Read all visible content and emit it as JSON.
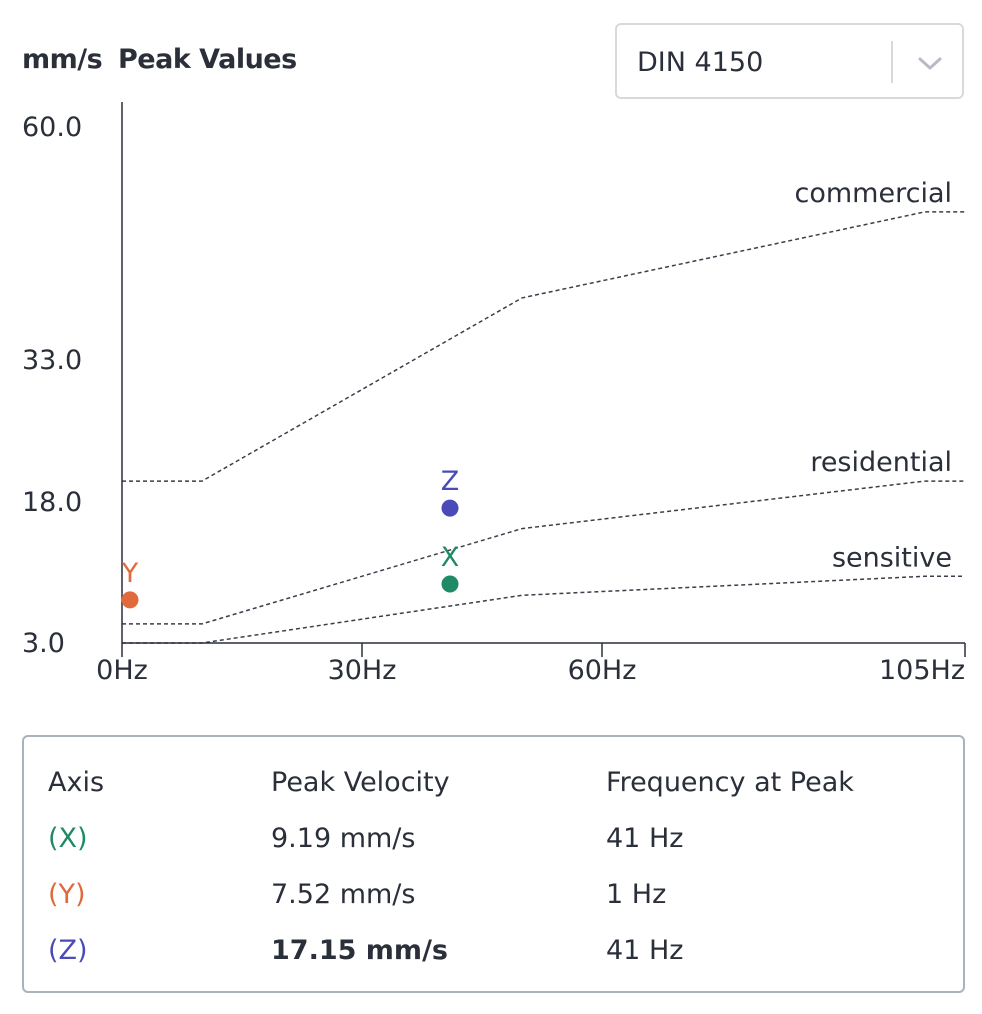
{
  "header": {
    "unit": "mm/s",
    "title": "Peak Values"
  },
  "standard_select": {
    "value": "DIN 4150",
    "icon": "chevron-down-icon"
  },
  "colors": {
    "x": "#1e8a66",
    "y": "#e06a3c",
    "z": "#4a4bb8",
    "axis": "#2a2f3a",
    "threshold": "#3a3f4a"
  },
  "chart_data": {
    "type": "scatter",
    "yticks": [
      "60.0",
      "33.0",
      "18.0",
      "3.0"
    ],
    "xticks": [
      "0Hz",
      "30Hz",
      "60Hz",
      "105Hz"
    ],
    "points": [
      {
        "label": "Y",
        "x": 1,
        "y": 7.52
      },
      {
        "label": "X",
        "x": 41,
        "y": 9.19
      },
      {
        "label": "Z",
        "x": 41,
        "y": 17.15
      }
    ],
    "thresholds": [
      {
        "name": "commercial",
        "points": [
          [
            0,
            20
          ],
          [
            10,
            20
          ],
          [
            50,
            40
          ],
          [
            100,
            50
          ],
          [
            105,
            50
          ]
        ]
      },
      {
        "name": "residential",
        "points": [
          [
            0,
            5
          ],
          [
            10,
            5
          ],
          [
            50,
            15
          ],
          [
            100,
            20
          ],
          [
            105,
            20
          ]
        ]
      },
      {
        "name": "sensitive",
        "points": [
          [
            0,
            3
          ],
          [
            10,
            3
          ],
          [
            50,
            8
          ],
          [
            100,
            10
          ],
          [
            105,
            10
          ]
        ]
      }
    ]
  },
  "table": {
    "headers": [
      "Axis",
      "Peak Velocity",
      "Frequency at Peak"
    ],
    "rows": [
      {
        "axis": "(X)",
        "velocity": "9.19 mm/s",
        "frequency": "41 Hz"
      },
      {
        "axis": "(Y)",
        "velocity": "7.52 mm/s",
        "frequency": "1 Hz"
      },
      {
        "axis": "(Z)",
        "velocity": "17.15 mm/s",
        "frequency": "41 Hz"
      }
    ]
  }
}
